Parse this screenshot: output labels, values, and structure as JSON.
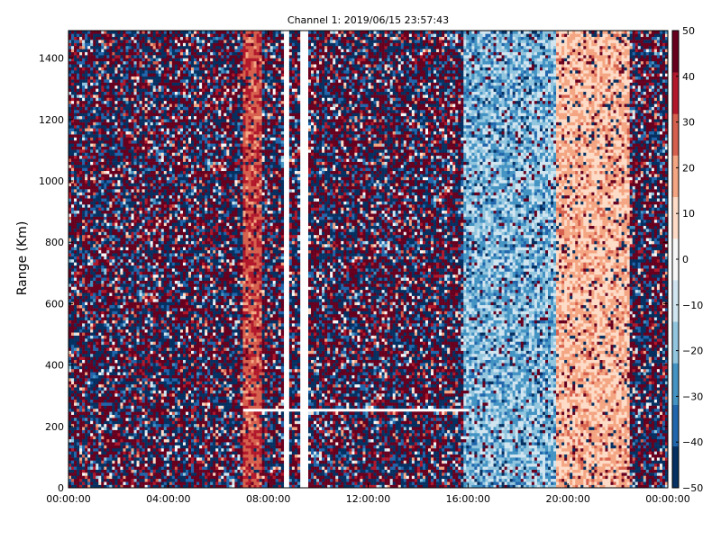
{
  "chart_data": {
    "type": "heatmap",
    "title": "Channel 1: 2019/06/15 23:57:43",
    "xlabel": "",
    "ylabel": "Range (Km)",
    "x_ticks": [
      "00:00:00",
      "04:00:00",
      "08:00:00",
      "12:00:00",
      "16:00:00",
      "20:00:00",
      "00:00:00"
    ],
    "x_range_hours": [
      0,
      24
    ],
    "y_ticks": [
      0,
      200,
      400,
      600,
      800,
      1000,
      1200,
      1400
    ],
    "ylim": [
      0,
      1490
    ],
    "colorbar": {
      "colormap": "RdBu_r",
      "range": [
        -50,
        50
      ],
      "ticks": [
        50,
        40,
        30,
        20,
        10,
        0,
        -10,
        -20,
        -30,
        -40,
        -50
      ],
      "colors": [
        "#053061",
        "#2166ac",
        "#4393c3",
        "#92c5de",
        "#d1e5f0",
        "#f7f7f7",
        "#fddbc7",
        "#f4a582",
        "#d6604d",
        "#b2182b",
        "#67001f"
      ]
    },
    "features": [
      {
        "description": "noise",
        "x_hours": [
          0,
          7.0
        ],
        "value_range": [
          -50,
          50
        ]
      },
      {
        "description": "enhanced echo band",
        "x_hours": [
          7.0,
          7.8
        ],
        "value_range": [
          20,
          40
        ]
      },
      {
        "description": "noise",
        "x_hours": [
          7.8,
          8.6
        ],
        "value_range": [
          -50,
          50
        ]
      },
      {
        "description": "data gap",
        "x_hours": [
          8.6,
          8.85
        ]
      },
      {
        "description": "noise",
        "x_hours": [
          8.85,
          9.3
        ],
        "value_range": [
          -50,
          50
        ]
      },
      {
        "description": "data gap",
        "x_hours": [
          9.3,
          9.55
        ]
      },
      {
        "description": "noise",
        "x_hours": [
          9.55,
          15.8
        ],
        "value_range": [
          -50,
          50
        ]
      },
      {
        "description": "negative velocity region",
        "x_hours": [
          15.8,
          19.5
        ],
        "value_range": [
          -35,
          -5
        ]
      },
      {
        "description": "positive velocity region",
        "x_hours": [
          19.5,
          22.5
        ],
        "value_range": [
          5,
          25
        ]
      },
      {
        "description": "noise",
        "x_hours": [
          22.5,
          24
        ],
        "value_range": [
          -50,
          50
        ]
      },
      {
        "description": "missing range gate",
        "range_km": 250,
        "x_hours": [
          7.0,
          16.0
        ]
      }
    ]
  }
}
